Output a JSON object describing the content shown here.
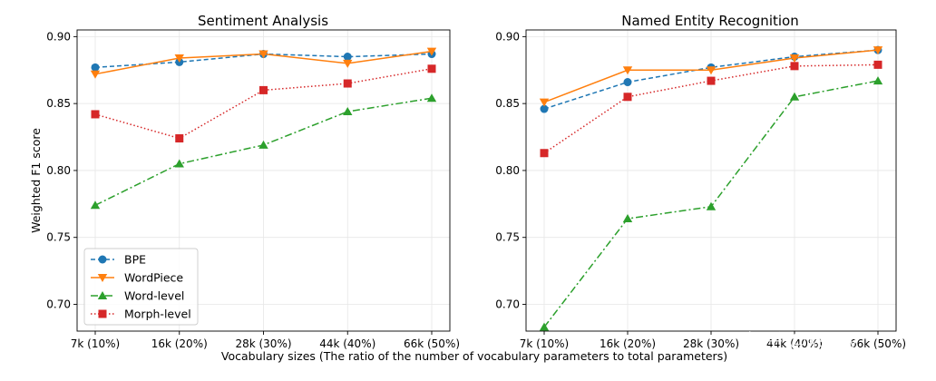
{
  "figure": {
    "xlabel": "Vocabulary sizes (The ratio of the number of vocabulary parameters to total parameters)",
    "ylabel": "Weighted F1 score",
    "watermark": "知乎 @xsxky"
  },
  "chart_data": [
    {
      "type": "line",
      "title": "Sentiment Analysis",
      "categories": [
        "7k (10%)",
        "16k (20%)",
        "28k (30%)",
        "44k (40%)",
        "66k (50%)"
      ],
      "ylim": [
        0.68,
        0.905
      ],
      "yticks": [
        "0.70",
        "0.75",
        "0.80",
        "0.85",
        "0.90"
      ],
      "ytick_values": [
        0.7,
        0.75,
        0.8,
        0.85,
        0.9
      ],
      "grid": true,
      "legend": "lower-left",
      "series": [
        {
          "name": "BPE",
          "values": [
            0.877,
            0.881,
            0.887,
            0.885,
            0.887
          ],
          "color": "#1f77b4",
          "marker": "circle",
          "dash": "5,3"
        },
        {
          "name": "WordPiece",
          "values": [
            0.872,
            0.884,
            0.887,
            0.88,
            0.889
          ],
          "color": "#ff7f0e",
          "marker": "triangle-down",
          "dash": ""
        },
        {
          "name": "Word-level",
          "values": [
            0.774,
            0.805,
            0.819,
            0.844,
            0.854
          ],
          "color": "#2ca02c",
          "marker": "triangle-up",
          "dash": "8,3,2,3"
        },
        {
          "name": "Morph-level",
          "values": [
            0.842,
            0.824,
            0.86,
            0.865,
            0.876
          ],
          "color": "#d62728",
          "marker": "square",
          "dash": "1.5,2.5"
        }
      ]
    },
    {
      "type": "line",
      "title": "Named Entity Recognition",
      "categories": [
        "7k (10%)",
        "16k (20%)",
        "28k (30%)",
        "44k (40%)",
        "66k (50%)"
      ],
      "ylim": [
        0.68,
        0.905
      ],
      "yticks": [
        "0.70",
        "0.75",
        "0.80",
        "0.85",
        "0.90"
      ],
      "ytick_values": [
        0.7,
        0.75,
        0.8,
        0.85,
        0.9
      ],
      "grid": true,
      "series": [
        {
          "name": "BPE",
          "values": [
            0.846,
            0.866,
            0.877,
            0.885,
            0.89
          ],
          "color": "#1f77b4",
          "marker": "circle",
          "dash": "5,3"
        },
        {
          "name": "WordPiece",
          "values": [
            0.851,
            0.875,
            0.875,
            0.884,
            0.89
          ],
          "color": "#ff7f0e",
          "marker": "triangle-down",
          "dash": ""
        },
        {
          "name": "Word-level",
          "values": [
            0.683,
            0.764,
            0.773,
            0.855,
            0.867
          ],
          "color": "#2ca02c",
          "marker": "triangle-up",
          "dash": "8,3,2,3"
        },
        {
          "name": "Morph-level",
          "values": [
            0.813,
            0.855,
            0.867,
            0.878,
            0.879
          ],
          "color": "#d62728",
          "marker": "square",
          "dash": "1.5,2.5"
        }
      ]
    }
  ]
}
